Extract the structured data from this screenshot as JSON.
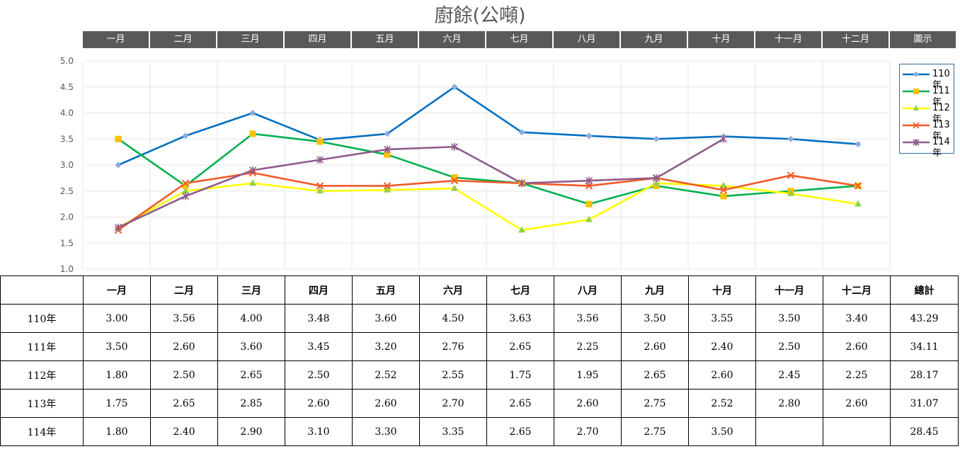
{
  "title": "廚餘(公噸)",
  "month_header": [
    "一月",
    "二月",
    "三月",
    "四月",
    "五月",
    "六月",
    "七月",
    "八月",
    "九月",
    "十月",
    "十一月",
    "十二月",
    "圖示"
  ],
  "chart_data": {
    "type": "line",
    "title": "廚餘(公噸)",
    "categories": [
      "一月",
      "二月",
      "三月",
      "四月",
      "五月",
      "六月",
      "七月",
      "八月",
      "九月",
      "十月",
      "十一月",
      "十二月"
    ],
    "ylim": [
      1.0,
      5.0
    ],
    "yticks": [
      "5.0",
      "4.5",
      "4.0",
      "3.5",
      "3.0",
      "2.5",
      "2.0",
      "1.5",
      "1.0"
    ],
    "grid": true,
    "legend_position": "right",
    "series": [
      {
        "name": "110年",
        "color": "#0070c0",
        "marker": "diamond",
        "marker_color": "#8faadc",
        "values": [
          3.0,
          3.56,
          4.0,
          3.48,
          3.6,
          4.5,
          3.63,
          3.56,
          3.5,
          3.55,
          3.5,
          3.4
        ]
      },
      {
        "name": "111年",
        "color": "#00b050",
        "marker": "square",
        "marker_color": "#ffc000",
        "values": [
          3.5,
          2.6,
          3.6,
          3.45,
          3.2,
          2.76,
          2.65,
          2.25,
          2.6,
          2.4,
          2.5,
          2.6
        ]
      },
      {
        "name": "112年",
        "color": "#ffff00",
        "marker": "triangle",
        "marker_color": "#92d050",
        "values": [
          1.8,
          2.5,
          2.65,
          2.5,
          2.52,
          2.55,
          1.75,
          1.95,
          2.65,
          2.6,
          2.45,
          2.25
        ]
      },
      {
        "name": "113年",
        "color": "#f05a28",
        "marker": "x",
        "marker_color": "#f05a28",
        "values": [
          1.75,
          2.65,
          2.85,
          2.6,
          2.6,
          2.7,
          2.65,
          2.6,
          2.75,
          2.52,
          2.8,
          2.6
        ]
      },
      {
        "name": "114年",
        "color": "#8e5b8c",
        "marker": "star",
        "marker_color": "#8e5b8c",
        "values": [
          1.8,
          2.4,
          2.9,
          3.1,
          3.3,
          3.35,
          2.65,
          2.7,
          2.75,
          3.5,
          null,
          null
        ]
      }
    ]
  },
  "table": {
    "headers": [
      "",
      "一月",
      "二月",
      "三月",
      "四月",
      "五月",
      "六月",
      "七月",
      "八月",
      "九月",
      "十月",
      "十一月",
      "十二月",
      "總計"
    ],
    "rows": [
      [
        "110年",
        "3.00",
        "3.56",
        "4.00",
        "3.48",
        "3.60",
        "4.50",
        "3.63",
        "3.56",
        "3.50",
        "3.55",
        "3.50",
        "3.40",
        "43.29"
      ],
      [
        "111年",
        "3.50",
        "2.60",
        "3.60",
        "3.45",
        "3.20",
        "2.76",
        "2.65",
        "2.25",
        "2.60",
        "2.40",
        "2.50",
        "2.60",
        "34.11"
      ],
      [
        "112年",
        "1.80",
        "2.50",
        "2.65",
        "2.50",
        "2.52",
        "2.55",
        "1.75",
        "1.95",
        "2.65",
        "2.60",
        "2.45",
        "2.25",
        "28.17"
      ],
      [
        "113年",
        "1.75",
        "2.65",
        "2.85",
        "2.60",
        "2.60",
        "2.70",
        "2.65",
        "2.60",
        "2.75",
        "2.52",
        "2.80",
        "2.60",
        "31.07"
      ],
      [
        "114年",
        "1.80",
        "2.40",
        "2.90",
        "3.10",
        "3.30",
        "3.35",
        "2.65",
        "2.70",
        "2.75",
        "3.50",
        "",
        "",
        "28.45"
      ]
    ]
  }
}
